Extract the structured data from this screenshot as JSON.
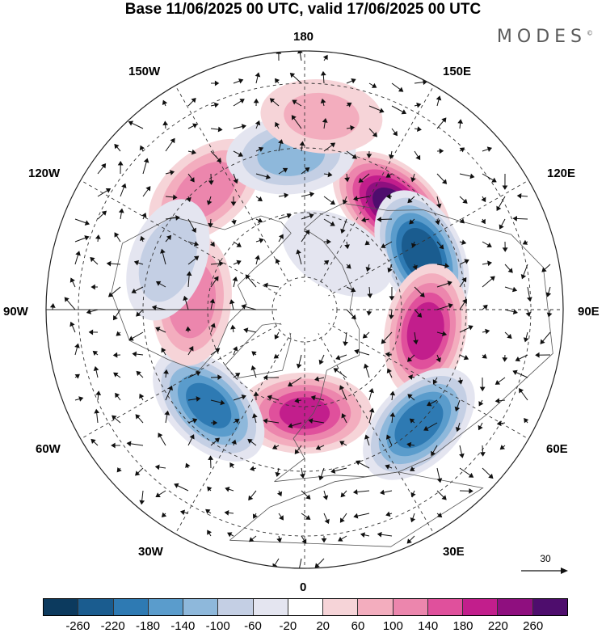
{
  "title": "Base 11/06/2025 00 UTC, valid 17/06/2025 00 UTC",
  "brand": "MODES",
  "brand_mark": "©",
  "longitude_labels": {
    "top": "180",
    "bottom": "0",
    "left": "90W",
    "right": "90E",
    "upper_left_1": "150W",
    "upper_left_2": "120W",
    "upper_right_1": "150E",
    "upper_right_2": "120E",
    "lower_left_1": "60W",
    "lower_left_2": "30W",
    "lower_right_1": "60E",
    "lower_right_2": "30E"
  },
  "reference_vector": {
    "label": "30"
  },
  "colorbar": {
    "colors": [
      "#0c3a5e",
      "#1a5c8f",
      "#2e7ab3",
      "#5a9ccc",
      "#8eb8db",
      "#c4cfe4",
      "#e4e5f0",
      "#ffffff",
      "#f6d4d8",
      "#f3adbe",
      "#ec86ad",
      "#e0509c",
      "#c21e8c",
      "#8f0f7f",
      "#4e0d6d"
    ],
    "ticks": [
      "-260",
      "-220",
      "-180",
      "-140",
      "-100",
      "-60",
      "-20",
      "20",
      "60",
      "100",
      "140",
      "180",
      "220",
      "260"
    ]
  },
  "anomaly_centers": [
    {
      "name": "pos-north-pacific",
      "lon": 140,
      "lat": 48,
      "value": 260
    },
    {
      "name": "neg-north-pacific",
      "lon": 115,
      "lat": 50,
      "value": -250
    },
    {
      "name": "pos-central-asia",
      "lon": 80,
      "lat": 52,
      "value": 200
    },
    {
      "name": "neg-eurasia",
      "lon": 45,
      "lat": 40,
      "value": -200
    },
    {
      "name": "pos-europe",
      "lon": 0,
      "lat": 58,
      "value": 180
    },
    {
      "name": "neg-atlantic",
      "lon": -45,
      "lat": 48,
      "value": -190
    },
    {
      "name": "pos-canada",
      "lon": -95,
      "lat": 55,
      "value": 130
    },
    {
      "name": "pos-gulf-alaska",
      "lon": -140,
      "lat": 42,
      "value": 120
    },
    {
      "name": "neg-bering",
      "lon": -175,
      "lat": 42,
      "value": -110
    },
    {
      "name": "neg-pacific-west",
      "lon": -110,
      "lat": 45,
      "value": -80
    },
    {
      "name": "pos-pacific-south",
      "lon": 175,
      "lat": 30,
      "value": 60
    },
    {
      "name": "neg-siberia-pole",
      "lon": 150,
      "lat": 70,
      "value": -50
    }
  ]
}
